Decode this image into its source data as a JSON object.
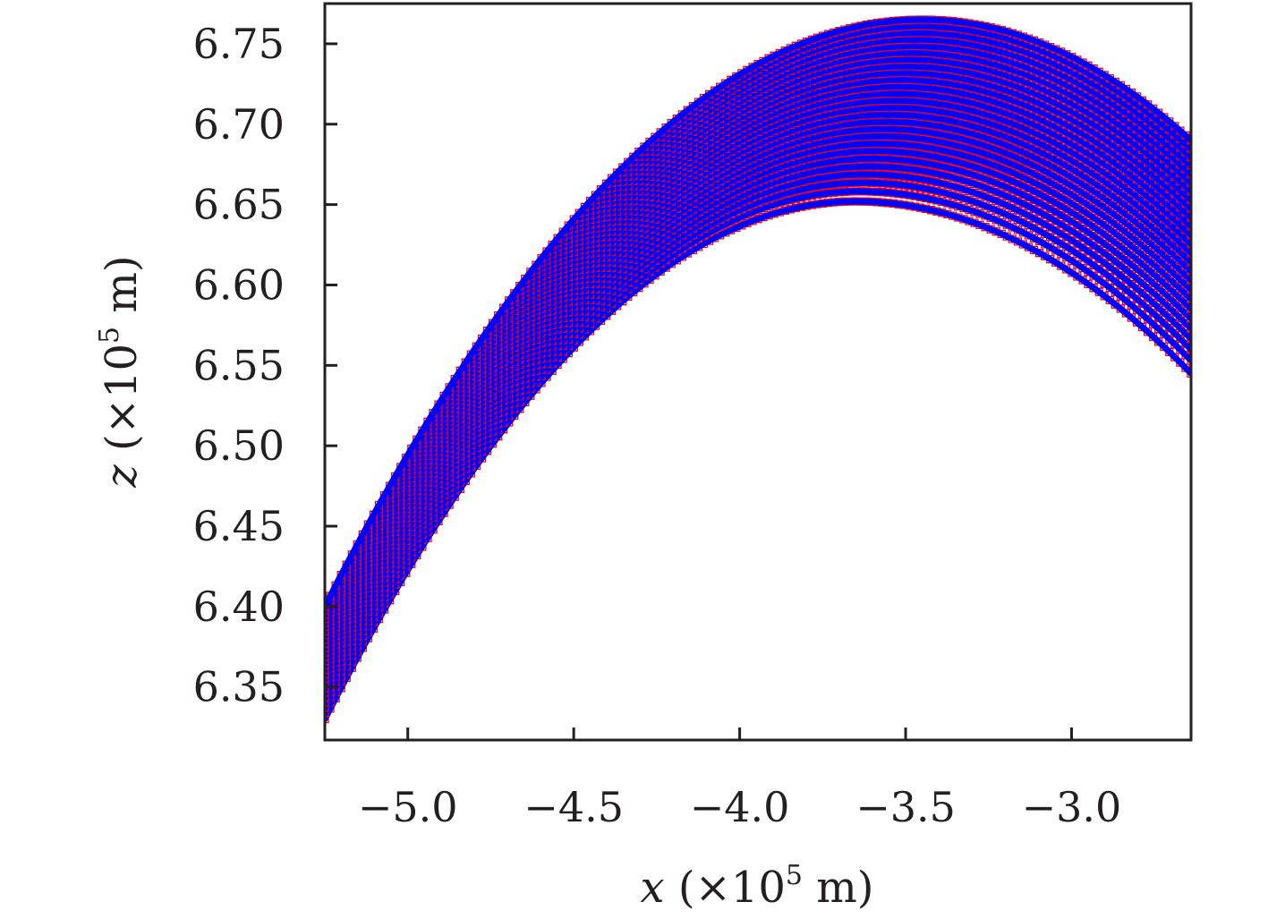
{
  "chart_data": {
    "type": "scatter",
    "title": "",
    "xlabel": "x (×10⁵ m)",
    "ylabel": "z (×10⁵ m)",
    "xlabel_parts": {
      "var": "x",
      "unit": " (×10",
      "exp": "5",
      "suffix": " m)"
    },
    "ylabel_parts": {
      "var": "z",
      "unit": " (×10",
      "exp": "5",
      "suffix": " m)"
    },
    "xlim": [
      -5.25,
      -2.64
    ],
    "ylim": [
      6.317,
      6.775
    ],
    "xticks": [
      -5.0,
      -4.5,
      -4.0,
      -3.5,
      -3.0
    ],
    "xtick_labels": [
      "−5.0",
      "−4.5",
      "−4.0",
      "−3.5",
      "−3.0"
    ],
    "yticks": [
      6.35,
      6.4,
      6.45,
      6.5,
      6.55,
      6.6,
      6.65,
      6.7,
      6.75
    ],
    "ytick_labels": [
      "6.35",
      "6.40",
      "6.45",
      "6.50",
      "6.55",
      "6.60",
      "6.65",
      "6.70",
      "6.75"
    ],
    "grid": false,
    "legend": "none",
    "series_style": {
      "line_color": "#0000ff",
      "marker_color": "#ff0000",
      "marker": "square-open"
    },
    "trajectories": {
      "x_start": -5.25,
      "x_end": -2.64,
      "envelope_upper": {
        "apex_x": -3.45,
        "apex_z": 6.765,
        "start_z": 6.4,
        "end_z": 6.69
      },
      "envelope_lower": {
        "apex_x": -3.65,
        "apex_z": 6.652,
        "start_z": 6.33,
        "end_z": 6.545
      },
      "count": 26
    }
  }
}
